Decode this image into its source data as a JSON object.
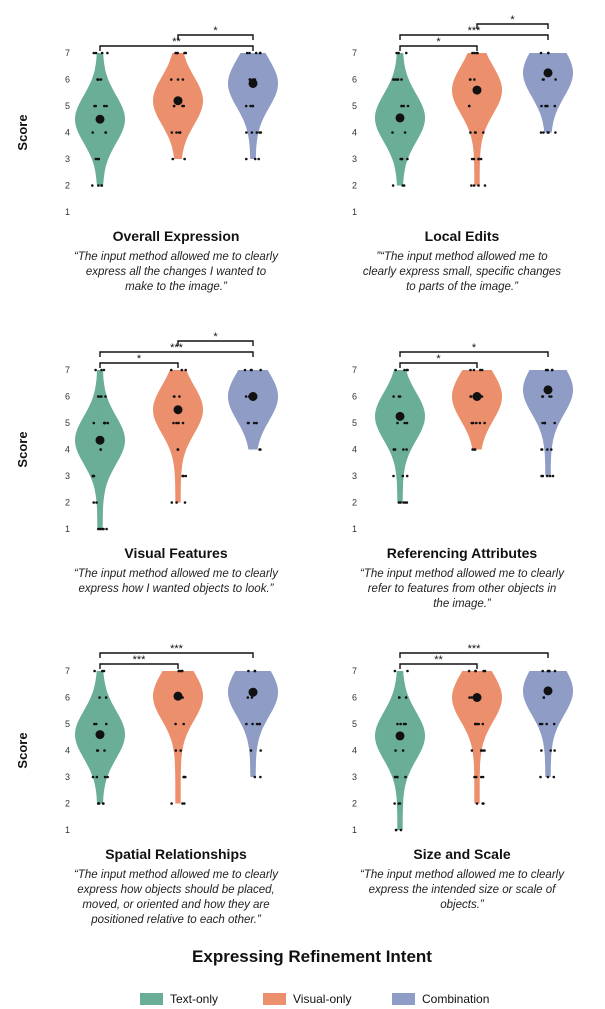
{
  "figure_title": "Expressing Refinement Intent",
  "y_axis_label": "Score",
  "y_ticks": [
    1,
    2,
    3,
    4,
    5,
    6,
    7
  ],
  "legend": [
    {
      "label": "Text-only",
      "color": "#6aae97"
    },
    {
      "label": "Visual-only",
      "color": "#ec8f6c"
    },
    {
      "label": "Combination",
      "color": "#8e9cc6"
    }
  ],
  "chart_data": [
    {
      "type": "violin",
      "title": "Overall Expression",
      "quote": [
        "“The input method allowed me to clearly",
        "express all the changes I wanted to",
        "make to the image.”"
      ],
      "ylabel": "Score",
      "ylim": [
        1,
        7
      ],
      "series": [
        {
          "name": "Text-only",
          "mean": 4.5,
          "min": 2,
          "max": 7
        },
        {
          "name": "Visual-only",
          "mean": 5.2,
          "min": 3,
          "max": 7
        },
        {
          "name": "Combination",
          "mean": 5.85,
          "min": 3,
          "max": 7
        }
      ],
      "significance": [
        {
          "from": "Text-only",
          "to": "Combination",
          "label": "**"
        },
        {
          "from": "Visual-only",
          "to": "Combination",
          "label": "*"
        }
      ]
    },
    {
      "type": "violin",
      "title": "Local Edits",
      "quote": [
        "”“The input method allowed me to",
        "clearly express small, specific changes",
        "to parts of the image.”"
      ],
      "ylabel": "",
      "ylim": [
        1,
        7
      ],
      "series": [
        {
          "name": "Text-only",
          "mean": 4.55,
          "min": 2,
          "max": 7
        },
        {
          "name": "Visual-only",
          "mean": 5.6,
          "min": 2,
          "max": 7
        },
        {
          "name": "Combination",
          "mean": 6.25,
          "min": 4,
          "max": 7
        }
      ],
      "significance": [
        {
          "from": "Text-only",
          "to": "Visual-only",
          "label": "*"
        },
        {
          "from": "Text-only",
          "to": "Combination",
          "label": "***"
        },
        {
          "from": "Visual-only",
          "to": "Combination",
          "label": "*"
        }
      ]
    },
    {
      "type": "violin",
      "title": "Visual Features",
      "quote": [
        "“The input method allowed me to clearly",
        "express how I wanted objects to look.”"
      ],
      "ylabel": "Score",
      "ylim": [
        1,
        7
      ],
      "series": [
        {
          "name": "Text-only",
          "mean": 4.35,
          "min": 1,
          "max": 7
        },
        {
          "name": "Visual-only",
          "mean": 5.5,
          "min": 2,
          "max": 7
        },
        {
          "name": "Combination",
          "mean": 6.0,
          "min": 4,
          "max": 7
        }
      ],
      "significance": [
        {
          "from": "Text-only",
          "to": "Visual-only",
          "label": "*"
        },
        {
          "from": "Text-only",
          "to": "Combination",
          "label": "***"
        },
        {
          "from": "Visual-only",
          "to": "Combination",
          "label": "*"
        }
      ]
    },
    {
      "type": "violin",
      "title": "Referencing Attributes",
      "quote": [
        "“The input method allowed me to clearly",
        "refer to features from other objects in",
        "the image.”"
      ],
      "ylabel": "",
      "ylim": [
        1,
        7
      ],
      "series": [
        {
          "name": "Text-only",
          "mean": 5.25,
          "min": 2,
          "max": 7
        },
        {
          "name": "Visual-only",
          "mean": 6.0,
          "min": 4,
          "max": 7
        },
        {
          "name": "Combination",
          "mean": 6.25,
          "min": 3,
          "max": 7
        }
      ],
      "significance": [
        {
          "from": "Text-only",
          "to": "Visual-only",
          "label": "*"
        },
        {
          "from": "Text-only",
          "to": "Combination",
          "label": "*"
        }
      ]
    },
    {
      "type": "violin",
      "title": "Spatial Relationships",
      "quote": [
        "“The input method allowed me to clearly",
        "express how objects should be placed,",
        "moved, or oriented and how they are",
        "positioned relative to each other.”"
      ],
      "ylabel": "Score",
      "ylim": [
        1,
        7
      ],
      "series": [
        {
          "name": "Text-only",
          "mean": 4.6,
          "min": 2,
          "max": 7
        },
        {
          "name": "Visual-only",
          "mean": 6.05,
          "min": 2,
          "max": 7
        },
        {
          "name": "Combination",
          "mean": 6.2,
          "min": 3,
          "max": 7
        }
      ],
      "significance": [
        {
          "from": "Text-only",
          "to": "Visual-only",
          "label": "***"
        },
        {
          "from": "Text-only",
          "to": "Combination",
          "label": "***"
        }
      ]
    },
    {
      "type": "violin",
      "title": "Size and Scale",
      "quote": [
        "“The input method allowed me to clearly",
        "express the intended size or scale of",
        "objects.”"
      ],
      "ylabel": "",
      "ylim": [
        1,
        7
      ],
      "series": [
        {
          "name": "Text-only",
          "mean": 4.55,
          "min": 1,
          "max": 7
        },
        {
          "name": "Visual-only",
          "mean": 6.0,
          "min": 2,
          "max": 7
        },
        {
          "name": "Combination",
          "mean": 6.25,
          "min": 3,
          "max": 7
        }
      ],
      "significance": [
        {
          "from": "Text-only",
          "to": "Visual-only",
          "label": "**"
        },
        {
          "from": "Text-only",
          "to": "Combination",
          "label": "***"
        }
      ]
    }
  ]
}
